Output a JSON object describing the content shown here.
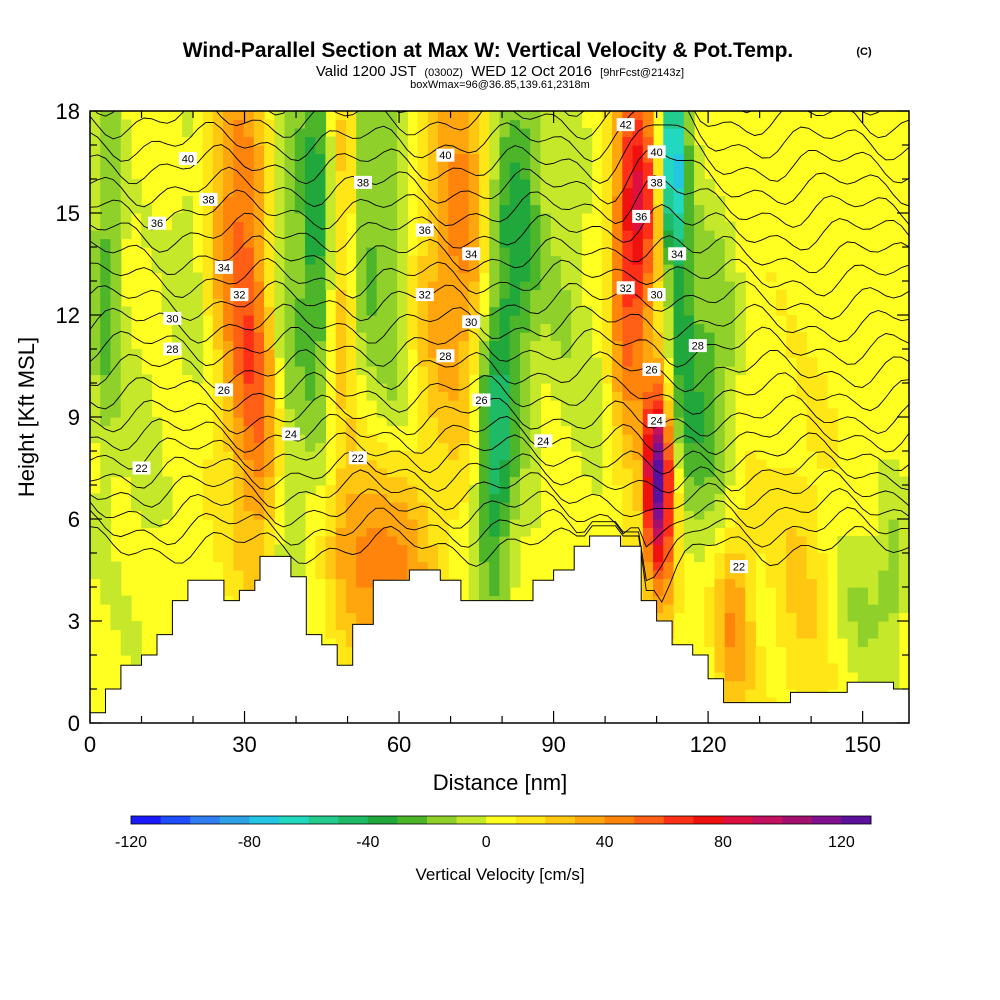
{
  "header": {
    "title": "Wind-Parallel Section at Max W: Vertical Velocity & Pot.Temp.",
    "title_mark": "(C)",
    "valid_prefix": "Valid 1200 JST",
    "valid_z": "(0300Z)",
    "valid_date": "WED 12 Oct 2016",
    "valid_fcst": "[9hrFcst@2143z]",
    "box_info": "boxWmax=96@36.85,139.61,2318m"
  },
  "chart_data": {
    "type": "heatmap",
    "xlabel": "Distance [nm]",
    "ylabel": "Height [Kft MSL]",
    "xlim": [
      0,
      159
    ],
    "ylim": [
      0,
      18
    ],
    "x_ticks": [
      0,
      30,
      60,
      90,
      120,
      150
    ],
    "y_ticks": [
      0,
      3,
      6,
      9,
      12,
      15,
      18
    ],
    "colorbar": {
      "title": "Vertical Velocity [cm/s]",
      "min": -120,
      "max": 130,
      "step": 10,
      "labels": [
        -120,
        -80,
        -40,
        0,
        40,
        80,
        120
      ],
      "colors": [
        "#1a1aff",
        "#1f4eff",
        "#2f7ef2",
        "#2ea2e6",
        "#23c7e3",
        "#22d8bf",
        "#23cc8e",
        "#1fba66",
        "#21a83c",
        "#4cb52a",
        "#8fd12a",
        "#c6e82a",
        "#ffff22",
        "#ffe617",
        "#ffc711",
        "#ffa50e",
        "#ff840c",
        "#ff6016",
        "#ff3018",
        "#ef1010",
        "#dd1040",
        "#c41060",
        "#a31070",
        "#801090",
        "#5c109e"
      ]
    },
    "velocity_features": [
      {
        "x": 3,
        "z": 13.5,
        "w": -30,
        "sx": 2.2,
        "sz": 4.5
      },
      {
        "x": 10,
        "z": 8.0,
        "w": -10,
        "sx": 3.0,
        "sz": 4.0
      },
      {
        "x": 20,
        "z": 14.0,
        "w": -15,
        "sx": 3.0,
        "sz": 3.0
      },
      {
        "x": 25,
        "z": 15.5,
        "w": 20,
        "sx": 3.0,
        "sz": 3.5
      },
      {
        "x": 30,
        "z": 13.0,
        "w": 45,
        "sx": 3.0,
        "sz": 4.5
      },
      {
        "x": 34,
        "z": 8.5,
        "w": 30,
        "sx": 3.0,
        "sz": 3.0
      },
      {
        "x": 38,
        "z": 11.0,
        "w": -25,
        "sx": 2.2,
        "sz": 6.0
      },
      {
        "x": 44,
        "z": 14.5,
        "w": -45,
        "sx": 2.5,
        "sz": 4.5
      },
      {
        "x": 49,
        "z": 14.0,
        "w": 25,
        "sx": 2.5,
        "sz": 4.5
      },
      {
        "x": 53,
        "z": 15.0,
        "w": -30,
        "sx": 1.8,
        "sz": 4.0
      },
      {
        "x": 58,
        "z": 14.0,
        "w": -25,
        "sx": 2.5,
        "sz": 4.5
      },
      {
        "x": 59,
        "z": 4.5,
        "w": 35,
        "sx": 5.0,
        "sz": 2.0
      },
      {
        "x": 52,
        "z": 5.5,
        "w": 25,
        "sx": 4.0,
        "sz": 2.0
      },
      {
        "x": 67,
        "z": 13.5,
        "w": 20,
        "sx": 3.0,
        "sz": 4.0
      },
      {
        "x": 73,
        "z": 14.5,
        "w": 35,
        "sx": 3.5,
        "sz": 4.5
      },
      {
        "x": 78,
        "z": 7.5,
        "w": -40,
        "sx": 2.5,
        "sz": 3.0
      },
      {
        "x": 80,
        "z": 12.0,
        "w": -25,
        "sx": 3.0,
        "sz": 5.0
      },
      {
        "x": 84,
        "z": 15.0,
        "w": -30,
        "sx": 3.0,
        "sz": 4.0
      },
      {
        "x": 92,
        "z": 14.0,
        "w": -15,
        "sx": 3.0,
        "sz": 4.0
      },
      {
        "x": 98,
        "z": 9.0,
        "w": -10,
        "sx": 3.0,
        "sz": 3.0
      },
      {
        "x": 104,
        "z": 13.0,
        "w": 40,
        "sx": 2.5,
        "sz": 4.0
      },
      {
        "x": 107,
        "z": 15.5,
        "w": 55,
        "sx": 2.5,
        "sz": 3.0
      },
      {
        "x": 110,
        "z": 7.3,
        "w": 96,
        "sx": 1.7,
        "sz": 1.9
      },
      {
        "x": 112,
        "z": 5.5,
        "w": 35,
        "sx": 2.5,
        "sz": 2.5
      },
      {
        "x": 113,
        "z": 16.5,
        "w": -75,
        "sx": 1.5,
        "sz": 2.0
      },
      {
        "x": 115,
        "z": 12.0,
        "w": -35,
        "sx": 2.0,
        "sz": 5.0
      },
      {
        "x": 118,
        "z": 9.0,
        "w": -20,
        "sx": 2.5,
        "sz": 3.0
      },
      {
        "x": 122,
        "z": 10.5,
        "w": -25,
        "sx": 2.5,
        "sz": 3.0
      },
      {
        "x": 125,
        "z": 3.0,
        "w": 35,
        "sx": 2.5,
        "sz": 2.0
      },
      {
        "x": 138,
        "z": 4.0,
        "w": 15,
        "sx": 4.0,
        "sz": 3.0
      },
      {
        "x": 150,
        "z": 3.5,
        "w": -15,
        "sx": 4.0,
        "sz": 2.0
      },
      {
        "x": 156,
        "z": 4.5,
        "w": -20,
        "sx": 2.0,
        "sz": 1.5
      }
    ],
    "terrain": [
      [
        0,
        0.3
      ],
      [
        3,
        0.3
      ],
      [
        3,
        1.0
      ],
      [
        6,
        1.0
      ],
      [
        6,
        1.7
      ],
      [
        10,
        1.7
      ],
      [
        10,
        2.0
      ],
      [
        13,
        2.0
      ],
      [
        13,
        2.6
      ],
      [
        16,
        2.6
      ],
      [
        16,
        3.6
      ],
      [
        19,
        3.6
      ],
      [
        19,
        4.2
      ],
      [
        26,
        4.2
      ],
      [
        26,
        3.6
      ],
      [
        29,
        3.6
      ],
      [
        29,
        3.9
      ],
      [
        32,
        3.9
      ],
      [
        32,
        4.2
      ],
      [
        33,
        4.2
      ],
      [
        33,
        4.9
      ],
      [
        39,
        4.9
      ],
      [
        39,
        4.3
      ],
      [
        42,
        4.3
      ],
      [
        42,
        2.6
      ],
      [
        45,
        2.6
      ],
      [
        45,
        2.3
      ],
      [
        48,
        2.3
      ],
      [
        48,
        1.7
      ],
      [
        51,
        1.7
      ],
      [
        51,
        2.9
      ],
      [
        55,
        2.9
      ],
      [
        55,
        4.2
      ],
      [
        62,
        4.2
      ],
      [
        62,
        4.5
      ],
      [
        68,
        4.5
      ],
      [
        68,
        4.2
      ],
      [
        72,
        4.2
      ],
      [
        72,
        3.6
      ],
      [
        86,
        3.6
      ],
      [
        86,
        4.2
      ],
      [
        90,
        4.2
      ],
      [
        90,
        4.5
      ],
      [
        94,
        4.5
      ],
      [
        94,
        5.2
      ],
      [
        97,
        5.2
      ],
      [
        97,
        5.5
      ],
      [
        103,
        5.5
      ],
      [
        103,
        5.2
      ],
      [
        107,
        5.2
      ],
      [
        107,
        3.6
      ],
      [
        110,
        3.6
      ],
      [
        110,
        3.0
      ],
      [
        113,
        3.0
      ],
      [
        113,
        2.3
      ],
      [
        117,
        2.3
      ],
      [
        117,
        2.0
      ],
      [
        120,
        2.0
      ],
      [
        120,
        1.3
      ],
      [
        123,
        1.3
      ],
      [
        123,
        0.6
      ],
      [
        136,
        0.6
      ],
      [
        136,
        0.9
      ],
      [
        147,
        0.9
      ],
      [
        147,
        1.2
      ],
      [
        156,
        1.2
      ],
      [
        156,
        1.0
      ],
      [
        159,
        1.0
      ]
    ],
    "theta_contours": {
      "min": 20,
      "max": 43,
      "labels": [
        {
          "x": 19,
          "z": 16.6,
          "v": "40"
        },
        {
          "x": 23,
          "z": 15.4,
          "v": "38"
        },
        {
          "x": 13,
          "z": 14.7,
          "v": "36"
        },
        {
          "x": 26,
          "z": 13.4,
          "v": "34"
        },
        {
          "x": 29,
          "z": 12.6,
          "v": "32"
        },
        {
          "x": 16,
          "z": 11.9,
          "v": "30"
        },
        {
          "x": 16,
          "z": 11.0,
          "v": "28"
        },
        {
          "x": 26,
          "z": 9.8,
          "v": "26"
        },
        {
          "x": 39,
          "z": 8.5,
          "v": "24"
        },
        {
          "x": 10,
          "z": 7.5,
          "v": "22"
        },
        {
          "x": 52,
          "z": 7.8,
          "v": "22"
        },
        {
          "x": 53,
          "z": 15.9,
          "v": "38"
        },
        {
          "x": 69,
          "z": 16.7,
          "v": "40"
        },
        {
          "x": 65,
          "z": 14.5,
          "v": "36"
        },
        {
          "x": 74,
          "z": 13.8,
          "v": "34"
        },
        {
          "x": 65,
          "z": 12.6,
          "v": "32"
        },
        {
          "x": 74,
          "z": 11.8,
          "v": "30"
        },
        {
          "x": 69,
          "z": 10.8,
          "v": "28"
        },
        {
          "x": 76,
          "z": 9.5,
          "v": "26"
        },
        {
          "x": 88,
          "z": 8.3,
          "v": "24"
        },
        {
          "x": 104,
          "z": 17.6,
          "v": "42"
        },
        {
          "x": 110,
          "z": 16.8,
          "v": "40"
        },
        {
          "x": 110,
          "z": 15.9,
          "v": "38"
        },
        {
          "x": 107,
          "z": 14.9,
          "v": "36"
        },
        {
          "x": 114,
          "z": 13.8,
          "v": "34"
        },
        {
          "x": 104,
          "z": 12.8,
          "v": "32"
        },
        {
          "x": 110,
          "z": 12.6,
          "v": "30"
        },
        {
          "x": 118,
          "z": 11.1,
          "v": "28"
        },
        {
          "x": 109,
          "z": 10.4,
          "v": "26"
        },
        {
          "x": 110,
          "z": 8.9,
          "v": "24"
        },
        {
          "x": 126,
          "z": 4.6,
          "v": "22"
        }
      ]
    }
  }
}
